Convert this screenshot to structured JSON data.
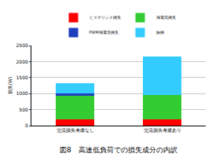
{
  "chart_data": {
    "type": "bar",
    "stacked": true,
    "title": "図8　高速低負荷での損失成分の内訳",
    "y_label": "損失(W)",
    "categories": [
      "交流損失考慮なし",
      "交流損失考慮あり"
    ],
    "series": [
      {
        "name": "ヒステリシス損失",
        "color": "#ff0000",
        "values": [
          200,
          200
        ]
      },
      {
        "name": "渦電流損失",
        "color": "#33cc33",
        "values": [
          730,
          750
        ]
      },
      {
        "name": "PWM渦電流損失",
        "color": "#1f3fbf",
        "values": [
          70,
          0
        ]
      },
      {
        "name": "銅損",
        "color": "#33ccff",
        "values": [
          330,
          1200
        ]
      }
    ],
    "ylim": [
      0,
      2500
    ],
    "yticks": [
      0,
      500,
      1000,
      1500,
      2000,
      2500
    ],
    "grid": true,
    "legend": "top"
  }
}
